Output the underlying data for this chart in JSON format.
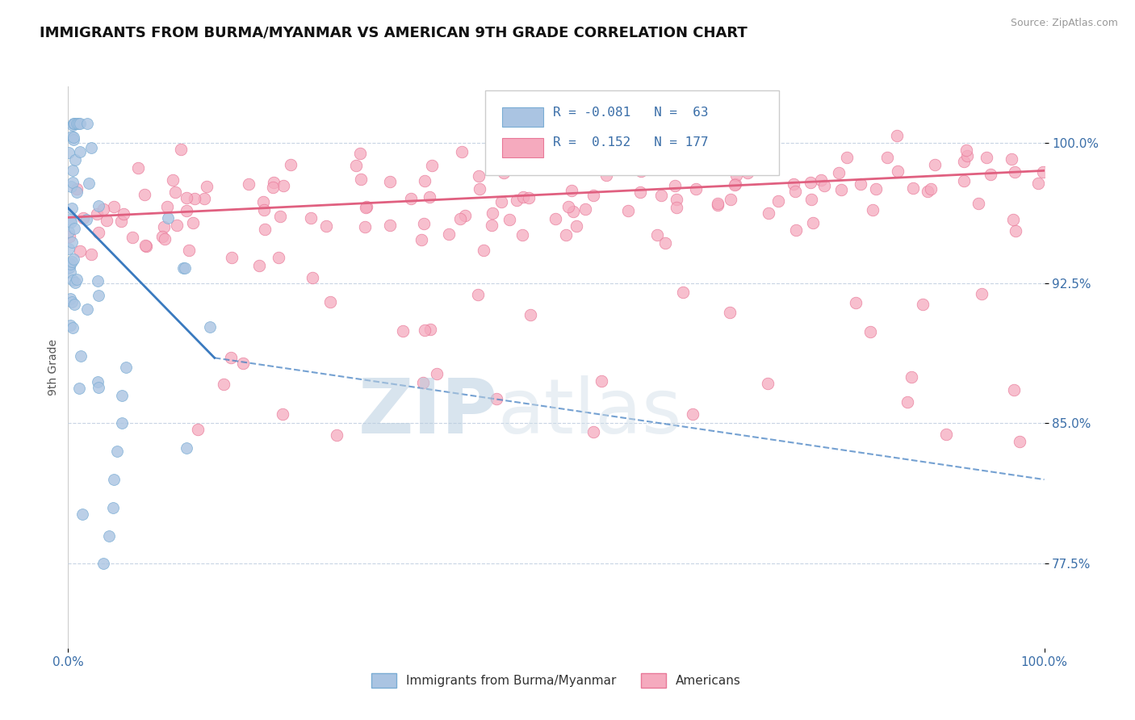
{
  "title": "IMMIGRANTS FROM BURMA/MYANMAR VS AMERICAN 9TH GRADE CORRELATION CHART",
  "source_text": "Source: ZipAtlas.com",
  "ylabel": "9th Grade",
  "yticks": [
    77.5,
    85.0,
    92.5,
    100.0
  ],
  "ytick_labels": [
    "77.5%",
    "85.0%",
    "92.5%",
    "100.0%"
  ],
  "xmin": 0.0,
  "xmax": 100.0,
  "ymin": 73.0,
  "ymax": 103.0,
  "blue_R": -0.081,
  "blue_N": 63,
  "pink_R": 0.152,
  "pink_N": 177,
  "blue_color": "#aac4e2",
  "blue_edge": "#7aadd4",
  "pink_color": "#f5aabe",
  "pink_edge": "#e87898",
  "blue_line_color": "#3a7abf",
  "pink_line_color": "#e06080",
  "watermark_zip": "ZIP",
  "watermark_atlas": "atlas",
  "watermark_color": "#c5d8ee",
  "legend_label_blue": "Immigrants from Burma/Myanmar",
  "legend_label_pink": "Americans",
  "blue_line_x0": 0,
  "blue_line_x1": 15,
  "blue_line_y0": 96.5,
  "blue_line_y1": 88.5,
  "blue_dash_x0": 15,
  "blue_dash_x1": 100,
  "blue_dash_y0": 88.5,
  "blue_dash_y1": 82.0,
  "pink_line_x0": 0,
  "pink_line_x1": 100,
  "pink_line_y0": 96.0,
  "pink_line_y1": 98.5
}
